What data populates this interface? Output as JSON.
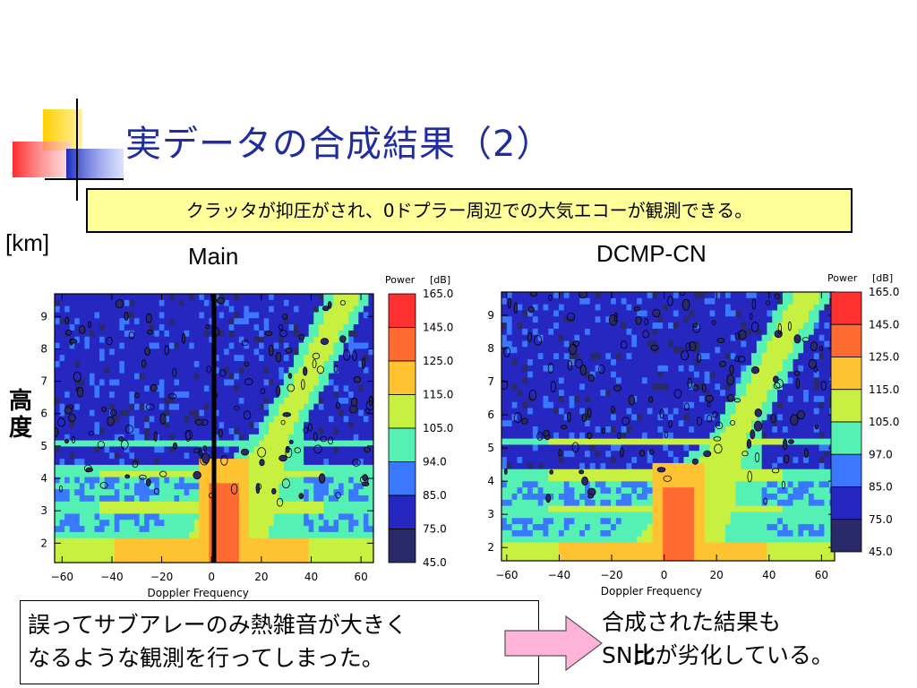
{
  "slide": {
    "title": "実データの合成結果（2）",
    "callout": "クラッタが抑圧がされ、0ドプラー周辺での大気エコーが観測できる。",
    "unit_label": "[km]",
    "y_axis_label_line1": "高",
    "y_axis_label_line2": "度",
    "left_note_line1": "誤ってサブアレーのみ熱雑音が大きく",
    "left_note_line2": "なるような観測を行ってしまった。",
    "result_line1": "合成された結果も",
    "result_line2_prefix": "SN",
    "result_line2_bold": "比",
    "result_line2_suffix": "が劣化している。",
    "colors": {
      "title": "#1f2d9e",
      "callout_bg": "#ffff99",
      "arrow": "#ffb3d9"
    }
  },
  "chart_data": [
    {
      "type": "heatmap",
      "title": "Main",
      "xlabel": "Doppler Frequency",
      "x_ticks": [
        -60,
        -40,
        -20,
        0,
        20,
        40,
        60
      ],
      "y_ticks": [
        2,
        3,
        4,
        5,
        6,
        7,
        8,
        9
      ],
      "xlim": [
        -63,
        65
      ],
      "ylim": [
        1.4,
        9.7
      ],
      "legend_title": "Power",
      "legend_unit": "[dB]",
      "legend_levels": [
        "165.0",
        "145.0",
        "125.0",
        "115.0",
        "105.0",
        "94.0",
        "85.0",
        "75.0",
        "45.0"
      ],
      "legend_colors": [
        "#ff3030",
        "#ff6a30",
        "#ffc230",
        "#c8f040",
        "#55f0b4",
        "#3a78ff",
        "#2626c0",
        "#2a2a6a"
      ],
      "clutter_line_x": 1
    },
    {
      "type": "heatmap",
      "title": "DCMP-CN",
      "xlabel": "Doppler Frequency",
      "x_ticks": [
        -60,
        -40,
        -20,
        0,
        20,
        40,
        60
      ],
      "y_ticks": [
        2,
        3,
        4,
        5,
        6,
        7,
        8,
        9
      ],
      "xlim": [
        -62,
        65
      ],
      "ylim": [
        1.6,
        9.7
      ],
      "legend_title": "Power",
      "legend_unit": "[dB]",
      "legend_levels": [
        "165.0",
        "145.0",
        "125.0",
        "115.0",
        "105.0",
        "97.0",
        "85.0",
        "75.0",
        "45.0"
      ],
      "legend_colors": [
        "#ff3030",
        "#ff6a30",
        "#ffc230",
        "#c8f040",
        "#55f0b4",
        "#3a78ff",
        "#2626c0",
        "#2a2a6a"
      ]
    }
  ]
}
